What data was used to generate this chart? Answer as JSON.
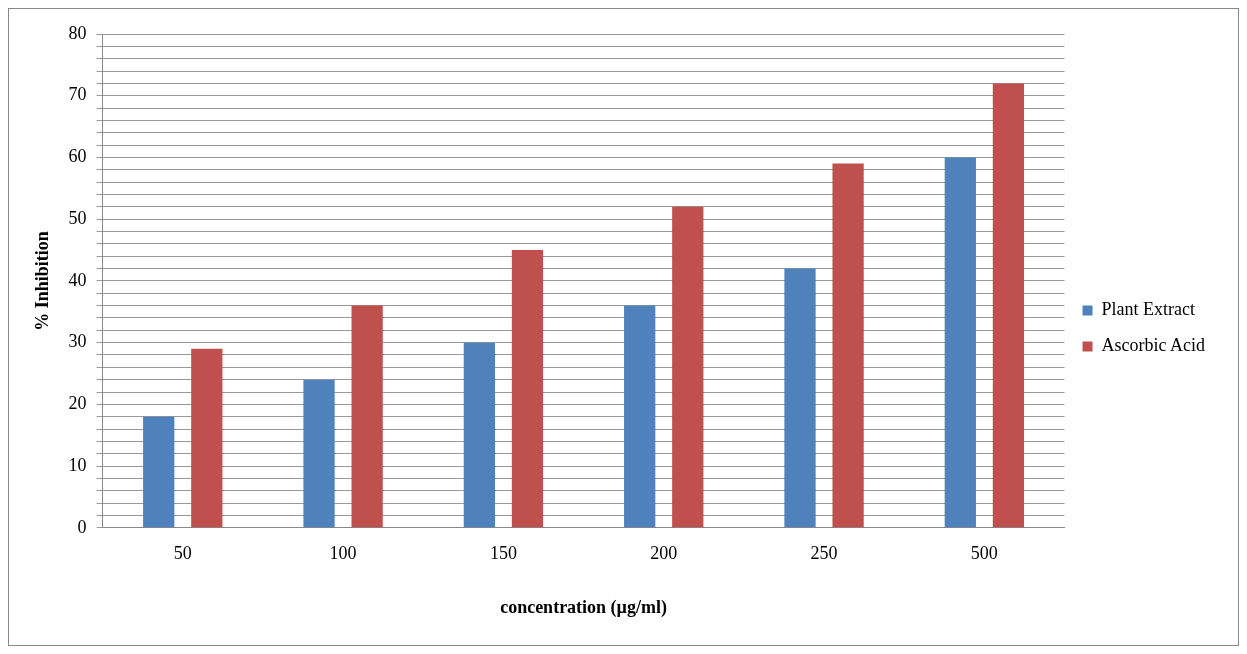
{
  "chart_data": {
    "type": "bar",
    "xlabel": "concentration (µg/ml)",
    "ylabel": "% Inhibition",
    "categories": [
      "50",
      "100",
      "150",
      "200",
      "250",
      "500"
    ],
    "series": [
      {
        "name": "Plant Extract",
        "color": "#4f81bd",
        "values": [
          18,
          24,
          30,
          36,
          42,
          60
        ]
      },
      {
        "name": "Ascorbic Acid",
        "color": "#c0504d",
        "values": [
          29,
          36,
          45,
          52,
          59,
          72
        ]
      }
    ],
    "ylim": [
      0,
      80
    ],
    "yticks": [
      0,
      {
        "value": 2,
        "label": null
      },
      {
        "value": 4,
        "label": null
      },
      {
        "value": 6,
        "label": null
      },
      {
        "value": 8,
        "label": null
      },
      10,
      {
        "value": 12,
        "label": null
      },
      {
        "value": 14,
        "label": null
      },
      {
        "value": 16,
        "label": null
      },
      {
        "value": 18,
        "label": null
      },
      20,
      {
        "value": 22,
        "label": null
      },
      {
        "value": 24,
        "label": null
      },
      {
        "value": 26,
        "label": null
      },
      {
        "value": 28,
        "label": null
      },
      30,
      {
        "value": 32,
        "label": null
      },
      {
        "value": 34,
        "label": null
      },
      {
        "value": 36,
        "label": null
      },
      {
        "value": 38,
        "label": null
      },
      40,
      {
        "value": 42,
        "label": null
      },
      {
        "value": 44,
        "label": null
      },
      {
        "value": 46,
        "label": null
      },
      {
        "value": 48,
        "label": null
      },
      50,
      {
        "value": 52,
        "label": null
      },
      {
        "value": 54,
        "label": null
      },
      {
        "value": 56,
        "label": null
      },
      {
        "value": 58,
        "label": null
      },
      60,
      {
        "value": 62,
        "label": null
      },
      {
        "value": 64,
        "label": null
      },
      {
        "value": 66,
        "label": null
      },
      {
        "value": 68,
        "label": null
      },
      70,
      {
        "value": 72,
        "label": null
      },
      {
        "value": 74,
        "label": null
      },
      {
        "value": 76,
        "label": null
      },
      {
        "value": 78,
        "label": null
      },
      80
    ],
    "grid": "y",
    "legend": "right"
  }
}
